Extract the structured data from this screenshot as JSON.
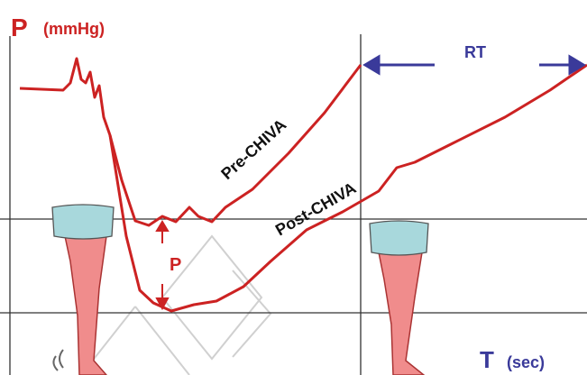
{
  "axis": {
    "y_label": "P",
    "y_unit": "(mmHg)",
    "x_label": "T",
    "x_unit": "(sec)"
  },
  "annotations": {
    "interval": "RT",
    "pre": "Pre-CHIVA",
    "post": "Post-CHIVA",
    "pressure_drop": "P"
  }
}
